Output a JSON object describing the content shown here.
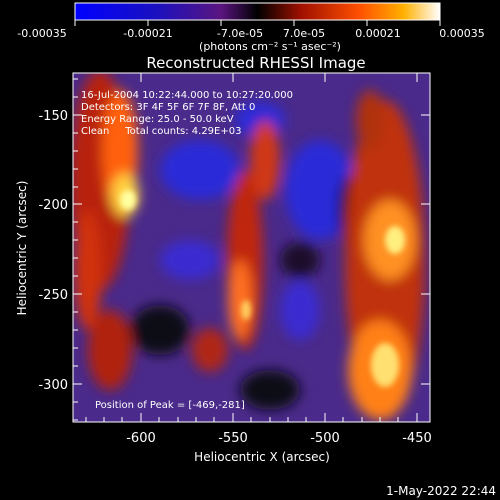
{
  "colorbar": {
    "tick_labels": [
      "-0.00035",
      "-0.00021",
      "-7.0e-05",
      "7.0e-05",
      "0.00021",
      "0.00035"
    ],
    "unit_label": "(photons cm⁻² s⁻¹ asec⁻²)"
  },
  "plot": {
    "title": "Reconstructed RHESSI Image",
    "xlabel": "Heliocentric X (arcsec)",
    "ylabel": "Heliocentric Y (arcsec)",
    "x_ticks": [
      "-600",
      "-550",
      "-500",
      "-450"
    ],
    "y_ticks": [
      "-150",
      "-200",
      "-250",
      "-300"
    ],
    "xlim": [
      -637,
      -443
    ],
    "ylim": [
      -322,
      -127
    ],
    "annotations": [
      "16-Jul-2004 10:22:44.000 to 10:27:20.000",
      "Detectors: 3F 4F 5F 6F 7F 8F, Att 0",
      "Energy Range: 25.0 - 50.0 keV",
      "Clean     Total counts: 4.29E+03"
    ],
    "peak_label": "Position of Peak = [-469,-281]"
  },
  "timestamp": "1-May-2022 22:44"
}
